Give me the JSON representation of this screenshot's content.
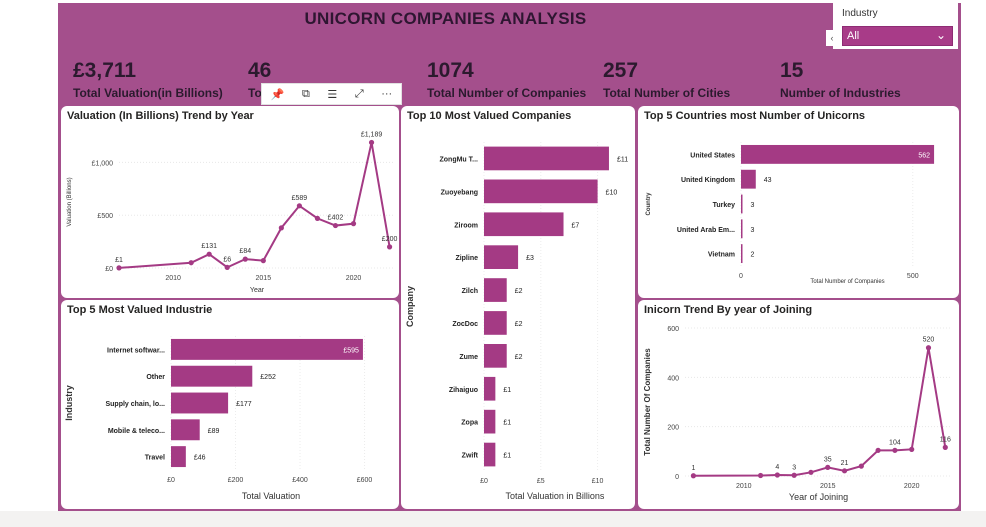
{
  "header": {
    "title": "UNICORN COMPANIES ANALYSIS"
  },
  "slicer": {
    "label": "Industry",
    "value": "All",
    "edge_glyph": "‹"
  },
  "kpis": [
    {
      "value": "£3,711",
      "label": "Total Valuation(in Billions)"
    },
    {
      "value": "46",
      "label": "To"
    },
    {
      "value": "1074",
      "label": "Total Number of Companies"
    },
    {
      "value": "257",
      "label": "Total Number of Cities"
    },
    {
      "value": "15",
      "label": "Number of Industries"
    }
  ],
  "toolbar": {
    "pin": "📌",
    "copy": "⧉",
    "filter": "☰",
    "focus": "⤢",
    "more": "···"
  },
  "colors": {
    "accent": "#a43a84",
    "header_bg": "#a44f8c",
    "panel_bg": "#ffffff"
  },
  "chart_data": [
    {
      "id": "valuation-trend",
      "type": "line",
      "title": "Valuation (In Billions) Trend by Year",
      "xlabel": "Year",
      "ylabel": "Valuation (Billions)",
      "x": [
        2007,
        2011,
        2012,
        2013,
        2014,
        2015,
        2016,
        2017,
        2018,
        2019,
        2020,
        2021,
        2022
      ],
      "y": [
        1,
        50,
        131,
        6,
        84,
        70,
        380,
        589,
        470,
        402,
        420,
        1189,
        200
      ],
      "data_labels": {
        "2007": "£1",
        "2012": "£131",
        "2013": "£6",
        "2014": "£84",
        "2017": "£589",
        "2019": "£402",
        "2021": "£1,189",
        "2022": "£200"
      },
      "xticks": [
        2010,
        2015,
        2020
      ],
      "yticks": [
        {
          "v": 0,
          "t": "£0"
        },
        {
          "v": 500,
          "t": "£500"
        },
        {
          "v": 1000,
          "t": "£1,000"
        }
      ],
      "xlim": [
        2007,
        2022.3
      ],
      "ylim": [
        0,
        1250
      ]
    },
    {
      "id": "top10-companies",
      "type": "bar",
      "orientation": "horizontal",
      "title": "Top 10 Most Valued Companies",
      "xlabel": "Total Valuation in Billions",
      "ylabel": "Company",
      "categories": [
        "ZongMu T...",
        "Zuoyebang",
        "Ziroom",
        "Zipline",
        "Zilch",
        "ZocDoc",
        "Zume",
        "Zihaiguo",
        "Zopa",
        "Zwift"
      ],
      "values": [
        11,
        10,
        7,
        3,
        2,
        2,
        2,
        1,
        1,
        1
      ],
      "data_labels": [
        "£11",
        "£10",
        "£7",
        "£3",
        "£2",
        "£2",
        "£2",
        "£1",
        "£1",
        "£1"
      ],
      "xticks": [
        {
          "v": 0,
          "t": "£0"
        },
        {
          "v": 5,
          "t": "£5"
        },
        {
          "v": 10,
          "t": "£10"
        }
      ],
      "xlim": [
        0,
        12.5
      ]
    },
    {
      "id": "top5-countries",
      "type": "bar",
      "orientation": "horizontal",
      "title": "Top 5 Countries most Number of Unicorns",
      "xlabel": "Total Number of Companies",
      "ylabel": "Country",
      "categories": [
        "United States",
        "United Kingdom",
        "Turkey",
        "United Arab Em...",
        "Vietnam"
      ],
      "values": [
        562,
        43,
        3,
        3,
        2
      ],
      "data_labels": [
        "562",
        "43",
        "3",
        "3",
        "2"
      ],
      "xticks": [
        {
          "v": 0,
          "t": "0"
        },
        {
          "v": 500,
          "t": "500"
        }
      ],
      "xlim": [
        0,
        620
      ]
    },
    {
      "id": "top5-industries",
      "type": "bar",
      "orientation": "horizontal",
      "title": "Top 5 Most Valued Industrie",
      "xlabel": "Total Valuation",
      "ylabel": "Industry",
      "categories": [
        "Internet softwar...",
        "Other",
        "Supply chain, lo...",
        "Mobile & teleco...",
        "Travel"
      ],
      "values": [
        595,
        252,
        177,
        89,
        46
      ],
      "data_labels": [
        "£595",
        "£252",
        "£177",
        "£89",
        "£46"
      ],
      "xticks": [
        {
          "v": 0,
          "t": "£0"
        },
        {
          "v": 200,
          "t": "£200"
        },
        {
          "v": 400,
          "t": "£400"
        },
        {
          "v": 600,
          "t": "£600"
        }
      ],
      "xlim": [
        0,
        620
      ]
    },
    {
      "id": "joining-trend",
      "type": "line",
      "title": "Inicorn Trend By year of Joining",
      "xlabel": "Year of Joining",
      "ylabel": "Total Number Of Companies",
      "x": [
        2007,
        2011,
        2012,
        2013,
        2014,
        2015,
        2016,
        2017,
        2018,
        2019,
        2020,
        2021,
        2022
      ],
      "y": [
        1,
        2,
        4,
        3,
        15,
        35,
        21,
        40,
        104,
        104,
        108,
        520,
        116
      ],
      "data_labels": {
        "2007": "1",
        "2012": "4",
        "2013": "3",
        "2015": "35",
        "2016": "21",
        "2019": "104",
        "2021": "520",
        "2022": "116"
      },
      "xticks": [
        2010,
        2015,
        2020
      ],
      "yticks": [
        {
          "v": 0,
          "t": "0"
        },
        {
          "v": 200,
          "t": "200"
        },
        {
          "v": 400,
          "t": "400"
        },
        {
          "v": 600,
          "t": "600"
        }
      ],
      "xlim": [
        2006.5,
        2022.4
      ],
      "ylim": [
        0,
        600
      ]
    }
  ]
}
